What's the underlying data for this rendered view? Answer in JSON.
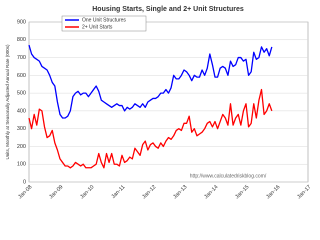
{
  "chart_data": {
    "type": "line",
    "title": "Housing Starts, Single and 2+ Unit Structures",
    "y_label": "Units, Monthly at Seasonally Adjusted Annual Rate (000s)",
    "source": "http://www.calculatedriskblog.com/",
    "categories": [
      "Jan-08",
      null,
      null,
      null,
      null,
      null,
      null,
      null,
      null,
      null,
      null,
      null,
      "Jan-09",
      null,
      null,
      null,
      null,
      null,
      null,
      null,
      null,
      null,
      null,
      null,
      "Jan-10",
      null,
      null,
      null,
      null,
      null,
      null,
      null,
      null,
      null,
      null,
      null,
      "Jan-11",
      null,
      null,
      null,
      null,
      null,
      null,
      null,
      null,
      null,
      null,
      null,
      "Jan-12",
      null,
      null,
      null,
      null,
      null,
      null,
      null,
      null,
      null,
      null,
      null,
      "Jan-13",
      null,
      null,
      null,
      null,
      null,
      null,
      null,
      null,
      null,
      null,
      null,
      "Jan-14",
      null,
      null,
      null,
      null,
      null,
      null,
      null,
      null,
      null,
      null,
      null,
      "Jan-15",
      null,
      null,
      null,
      null,
      null,
      null,
      null,
      null,
      null,
      null,
      null,
      "Jan-16",
      null,
      null,
      null,
      null,
      null,
      null,
      null,
      null,
      null,
      null,
      null,
      "Jan-17"
    ],
    "series": [
      {
        "name": "One Unit Structures",
        "color": "#0000ff",
        "values": [
          770,
          720,
          700,
          690,
          680,
          650,
          640,
          630,
          600,
          560,
          540,
          450,
          380,
          360,
          360,
          370,
          400,
          480,
          500,
          510,
          490,
          500,
          500,
          480,
          500,
          520,
          540,
          510,
          460,
          450,
          440,
          430,
          420,
          430,
          440,
          430,
          430,
          400,
          420,
          410,
          420,
          440,
          430,
          420,
          440,
          420,
          450,
          460,
          470,
          470,
          480,
          500,
          500,
          520,
          500,
          530,
          600,
          580,
          580,
          600,
          630,
          620,
          600,
          570,
          600,
          590,
          590,
          630,
          600,
          640,
          720,
          660,
          590,
          590,
          640,
          650,
          640,
          600,
          680,
          650,
          660,
          700,
          700,
          680,
          690,
          600,
          620,
          730,
          690,
          700,
          760,
          730,
          750,
          710,
          760,
          null,
          null,
          null,
          null,
          null,
          null,
          null,
          null,
          null,
          null,
          null,
          null,
          null,
          null
        ]
      },
      {
        "name": "2+ Unit Starts",
        "color": "#ff0000",
        "values": [
          360,
          300,
          380,
          320,
          410,
          400,
          310,
          250,
          260,
          290,
          220,
          180,
          130,
          110,
          90,
          90,
          80,
          90,
          110,
          100,
          90,
          100,
          80,
          80,
          80,
          90,
          100,
          160,
          110,
          80,
          160,
          110,
          160,
          100,
          100,
          90,
          150,
          110,
          120,
          140,
          130,
          190,
          170,
          150,
          210,
          230,
          180,
          210,
          220,
          200,
          190,
          220,
          200,
          230,
          250,
          240,
          260,
          290,
          300,
          290,
          330,
          330,
          370,
          280,
          300,
          260,
          270,
          280,
          300,
          330,
          340,
          310,
          340,
          300,
          340,
          380,
          360,
          320,
          440,
          320,
          360,
          380,
          320,
          400,
          440,
          310,
          330,
          440,
          360,
          460,
          520,
          380,
          400,
          440,
          400,
          null,
          null,
          null,
          null,
          null,
          null,
          null,
          null,
          null,
          null,
          null,
          null,
          null,
          null
        ]
      }
    ],
    "ylim": [
      0,
      900
    ],
    "yticks": [
      0,
      100,
      200,
      300,
      400,
      500,
      600,
      700,
      800,
      900
    ],
    "grid": true
  }
}
